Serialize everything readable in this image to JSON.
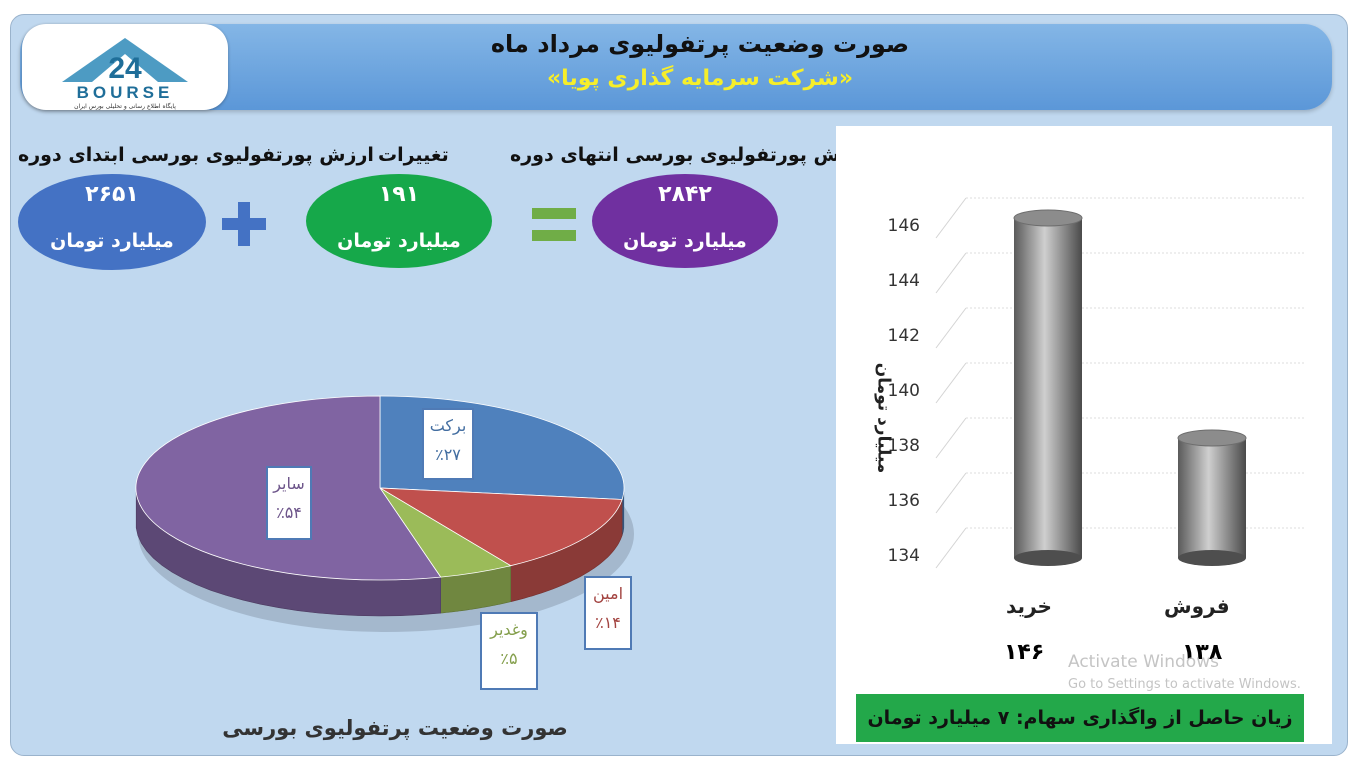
{
  "header": {
    "title": "صورت وضعیت پرتفولیوی مرداد ماه",
    "subtitle": "«شرکت سرمایه گذاری پویا»",
    "logo_text": "BOURSE",
    "logo_number": "24",
    "logo_tagline": "پایگاه اطلاع رسانی و تحلیلی بورس ایران"
  },
  "summary": {
    "start": {
      "label": "ارزش پورتفولیوی بورسی ابتدای دوره",
      "value": "۲۶۵۱",
      "unit": "میلیارد تومان"
    },
    "change": {
      "label": "تغییرات",
      "value": "۱۹۱",
      "unit": "میلیارد تومان"
    },
    "end": {
      "label": "ارزش پورتفولیوی بورسی انتهای دوره",
      "value": "۲۸۴۲",
      "unit": "میلیارد تومان"
    },
    "plus_symbol": "plus-icon",
    "equals_symbol": "equals-icon"
  },
  "colors": {
    "start_oval": "#4472c4",
    "change_oval": "#16a84a",
    "end_oval": "#7030a0",
    "plus": "#4472c4",
    "equals": "#70ad47"
  },
  "chart_data": [
    {
      "type": "pie",
      "title": "صورت وضعیت پرتفولیوی بورسی",
      "slices": [
        {
          "name": "برکت",
          "label": "٪۲۷",
          "value": 27,
          "color": "#4f81bd"
        },
        {
          "name": "امین",
          "label": "٪۱۴",
          "value": 14,
          "color": "#c0504d"
        },
        {
          "name": "وغدیر",
          "label": "٪۵",
          "value": 5,
          "color": "#9bbb59"
        },
        {
          "name": "سایر",
          "label": "٪۵۴",
          "value": 54,
          "color": "#8064a2"
        }
      ]
    },
    {
      "type": "bar",
      "categories": [
        "خرید",
        "فروش"
      ],
      "values": [
        146,
        138
      ],
      "value_labels": [
        "۱۴۶",
        "۱۳۸"
      ],
      "ylabel": "میلیارد تومان",
      "ylim": [
        134,
        147
      ],
      "yticks": [
        146,
        144,
        142,
        140,
        138,
        136,
        134
      ],
      "grid": true
    }
  ],
  "footer_note": "زیان حاصل از واگذاری سهام: ۷ میلیارد تومان",
  "watermark": {
    "line1": "Activate Windows",
    "line2": "Go to Settings to activate Windows."
  }
}
